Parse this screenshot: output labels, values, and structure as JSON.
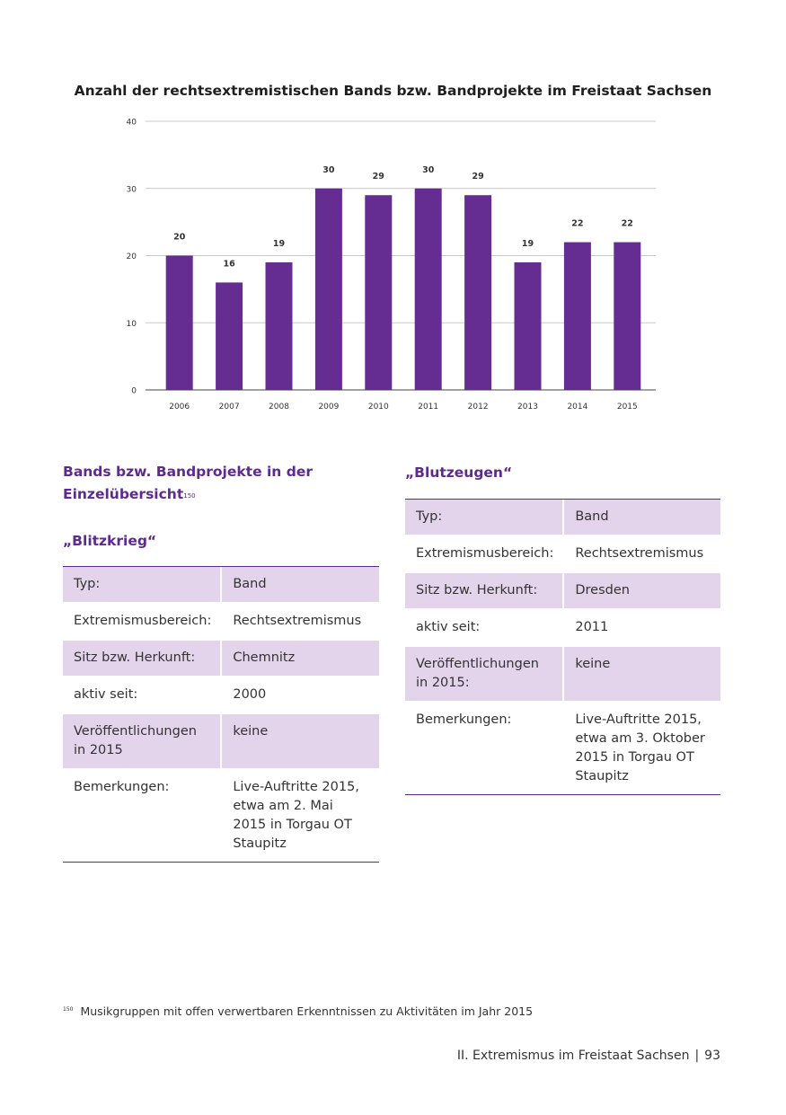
{
  "chart_data": {
    "type": "bar",
    "title": "Anzahl der rechtsextremistischen Bands bzw. Bandprojekte im Freistaat Sachsen",
    "categories": [
      "2006",
      "2007",
      "2008",
      "2009",
      "2010",
      "2011",
      "2012",
      "2013",
      "2014",
      "2015"
    ],
    "values": [
      20,
      16,
      19,
      30,
      29,
      30,
      29,
      19,
      22,
      22
    ],
    "ylim": [
      0,
      40
    ],
    "yticks": [
      0,
      10,
      20,
      30,
      40
    ],
    "xlabel": "",
    "ylabel": "",
    "grid": true,
    "bar_color": "#652d92"
  },
  "left": {
    "heading_line1": "Bands bzw. Bandprojekte in der",
    "heading_line2": "Einzelübersicht",
    "heading_footnote_ref": "150",
    "band_title": "„Blitzkrieg“",
    "rows": [
      {
        "label": "Typ:",
        "value": "Band"
      },
      {
        "label": "Extremismusbereich:",
        "value": "Rechtsextremismus"
      },
      {
        "label": "Sitz bzw. Herkunft:",
        "value": "Chemnitz"
      },
      {
        "label": "aktiv seit:",
        "value": "2000"
      },
      {
        "label": "Veröffentlichungen in 2015",
        "value": "keine"
      },
      {
        "label": "Bemerkungen:",
        "value": "Live-Auftritte 2015, etwa am 2. Mai 2015 in Torgau OT Staupitz"
      }
    ]
  },
  "right": {
    "band_title": "„Blutzeugen“",
    "rows": [
      {
        "label": "Typ:",
        "value": "Band"
      },
      {
        "label": "Extremismusbereich:",
        "value": "Rechtsextremismus"
      },
      {
        "label": "Sitz bzw. Herkunft:",
        "value": "Dresden"
      },
      {
        "label": "aktiv seit:",
        "value": "2011"
      },
      {
        "label": "Veröffentlichungen in 2015:",
        "value": "keine"
      },
      {
        "label": "Bemerkungen:",
        "value": "Live-Auftritte 2015, etwa am 3. Oktober 2015 in Torgau OT Staupitz"
      }
    ]
  },
  "footnote": {
    "number": "150",
    "text": "Musikgruppen mit offen verwertbaren Erkenntnissen zu Aktivitäten im Jahr 2015"
  },
  "footer": {
    "section": "II. Extremismus im Freistaat Sachsen",
    "separator": "|",
    "page": "93"
  }
}
